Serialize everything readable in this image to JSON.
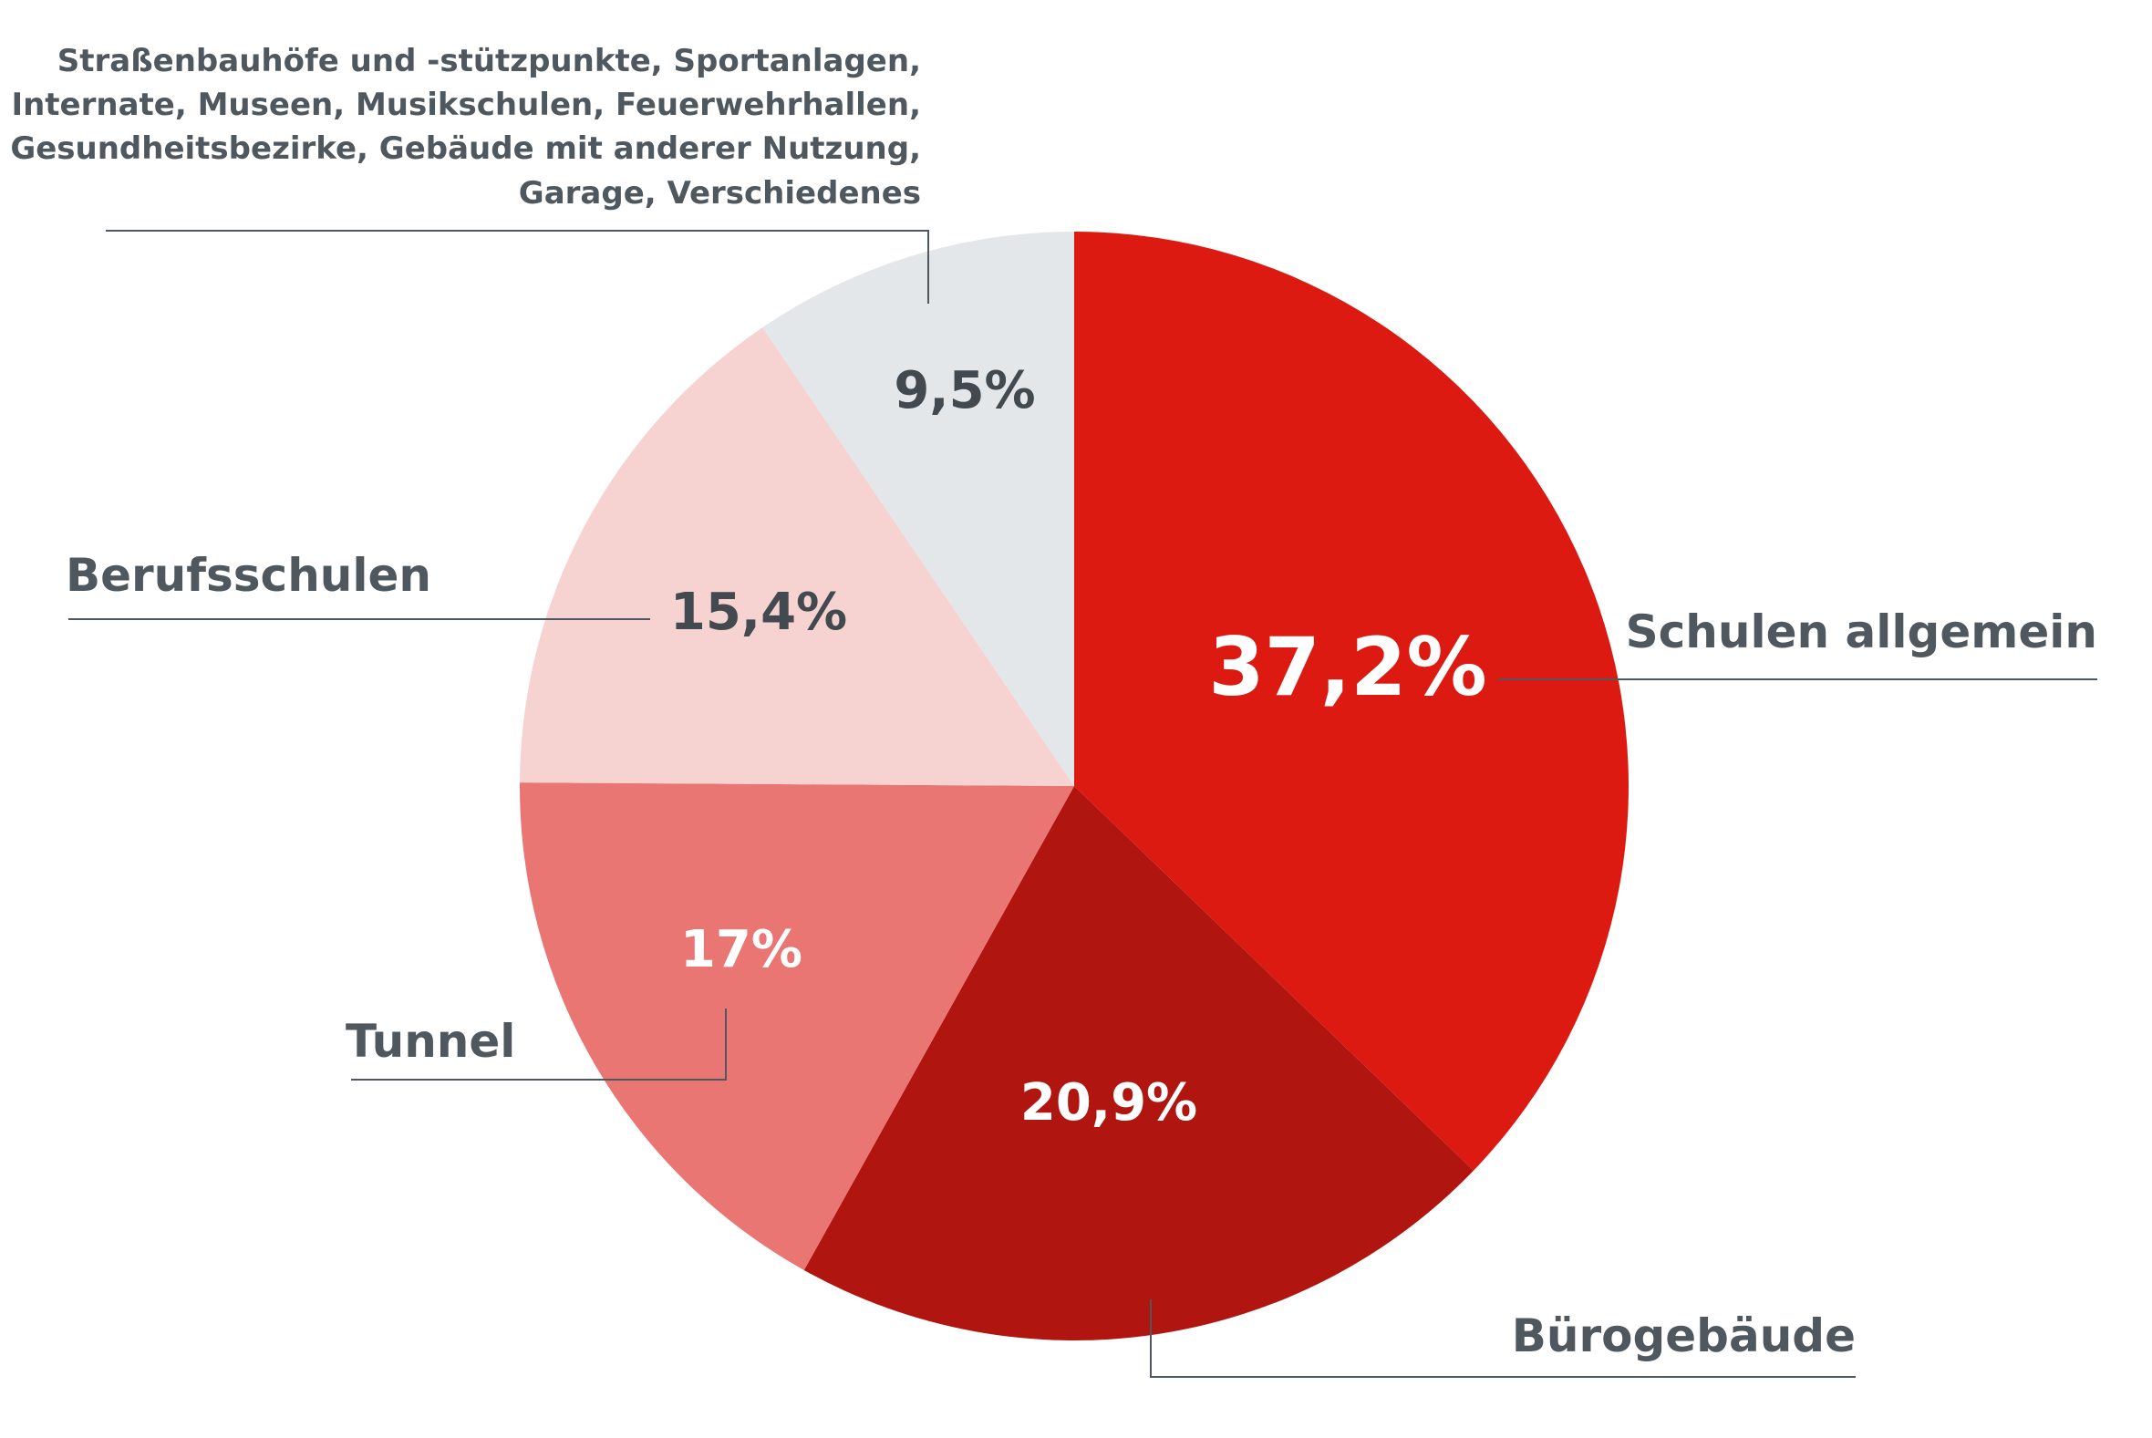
{
  "chart_data": {
    "type": "pie",
    "start": "12 o'clock",
    "direction": "clockwise",
    "slices": [
      {
        "label": "Schulen allgemein",
        "value_label": "37,2%",
        "value": 37.2,
        "color": "#dd1a12",
        "value_color": "#ffffff"
      },
      {
        "label": "Bürogebäude",
        "value_label": "20,9%",
        "value": 20.9,
        "color": "#b0160f",
        "value_color": "#ffffff"
      },
      {
        "label": "Tunnel",
        "value_label": "17%",
        "value": 17.0,
        "color": "#e97673",
        "value_color": "#ffffff"
      },
      {
        "label": "Berufsschulen",
        "value_label": "15,4%",
        "value": 15.4,
        "color": "#f6d2d1",
        "value_color": "#424a4f"
      },
      {
        "label": "",
        "value_label": "9,5%",
        "value": 9.5,
        "color": "#e3e7e9",
        "value_color": "#424a4f"
      }
    ],
    "other_note": [
      "Straßenbauhöfe und -stützpunkte, Sportanlagen,",
      "Internate, Museen, Musikschulen, Feuerwehrhallen,",
      "Gesundheitsbezirke, Gebäude mit anderer Nutzung,",
      "Garage, Verschiedenes"
    ],
    "label_color": "#4f585e"
  }
}
